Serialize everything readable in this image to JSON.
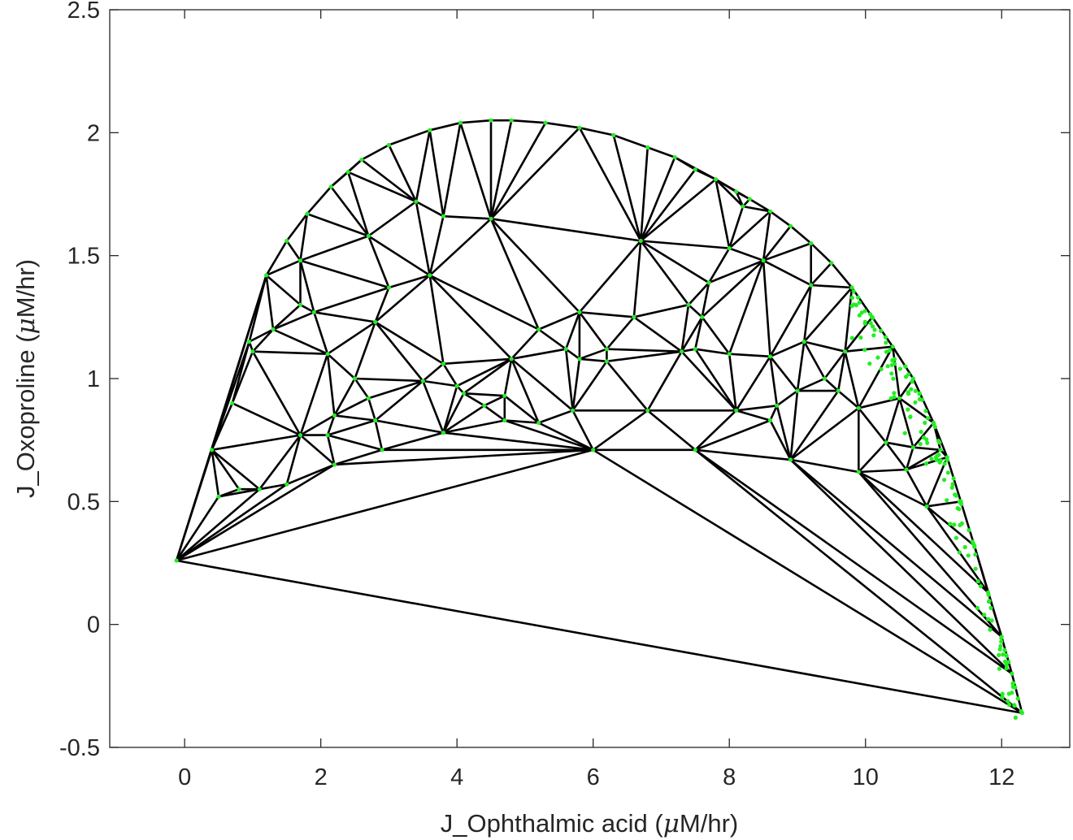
{
  "chart_data": {
    "type": "scatter",
    "title": "",
    "xlabel": {
      "prefix": "J_Ophthalmic acid (",
      "mu": "μ",
      "suffix": "M/hr)"
    },
    "ylabel": {
      "prefix": "J_Oxoproline (",
      "mu": "μ",
      "suffix": "M/hr)"
    },
    "xlim": [
      -1.1,
      13.0
    ],
    "ylim": [
      -0.5,
      2.5
    ],
    "xticks": [
      0,
      2,
      4,
      6,
      8,
      10,
      12
    ],
    "yticks": [
      -0.5,
      0,
      0.5,
      1,
      1.5,
      2,
      2.5
    ],
    "xtick_labels": [
      "0",
      "2",
      "4",
      "6",
      "8",
      "10",
      "12"
    ],
    "ytick_labels": [
      "-0.5",
      "0",
      "0.5",
      "1",
      "1.5",
      "2",
      "2.5"
    ],
    "grid": false,
    "legend": "none",
    "mesh_color": "#000000",
    "point_color": "#22ee22",
    "outer_points": [
      [
        -0.12,
        0.26
      ],
      [
        0.4,
        0.71
      ],
      [
        0.95,
        1.15
      ],
      [
        1.2,
        1.42
      ],
      [
        1.5,
        1.56
      ],
      [
        1.8,
        1.67
      ],
      [
        2.15,
        1.78
      ],
      [
        2.4,
        1.84
      ],
      [
        2.6,
        1.89
      ],
      [
        3.0,
        1.95
      ],
      [
        3.6,
        2.01
      ],
      [
        4.05,
        2.04
      ],
      [
        4.5,
        2.05
      ],
      [
        4.8,
        2.05
      ],
      [
        5.3,
        2.04
      ],
      [
        5.8,
        2.02
      ],
      [
        6.3,
        1.99
      ],
      [
        6.8,
        1.94
      ],
      [
        7.2,
        1.9
      ],
      [
        7.5,
        1.85
      ],
      [
        7.8,
        1.81
      ],
      [
        8.1,
        1.76
      ],
      [
        8.3,
        1.73
      ],
      [
        8.6,
        1.68
      ],
      [
        8.9,
        1.62
      ],
      [
        9.2,
        1.55
      ],
      [
        9.5,
        1.47
      ],
      [
        9.8,
        1.37
      ],
      [
        10.1,
        1.25
      ],
      [
        10.4,
        1.13
      ],
      [
        10.7,
        1.0
      ],
      [
        11.0,
        0.82
      ],
      [
        11.2,
        0.68
      ],
      [
        11.4,
        0.5
      ],
      [
        11.6,
        0.32
      ],
      [
        11.8,
        0.13
      ],
      [
        12.0,
        -0.05
      ],
      [
        12.15,
        -0.2
      ],
      [
        12.3,
        -0.36
      ]
    ],
    "base_points": [
      [
        2.9,
        0.71
      ],
      [
        6.0,
        0.71
      ],
      [
        7.5,
        0.71
      ],
      [
        8.9,
        0.67
      ],
      [
        9.9,
        0.62
      ],
      [
        10.9,
        0.48
      ],
      [
        11.6,
        0.32
      ],
      [
        12.3,
        -0.36
      ]
    ],
    "interior_points": [
      [
        0.5,
        0.52
      ],
      [
        0.8,
        0.55
      ],
      [
        1.1,
        0.55
      ],
      [
        1.5,
        0.57
      ],
      [
        2.2,
        0.65
      ],
      [
        0.7,
        0.9
      ],
      [
        1.0,
        1.11
      ],
      [
        1.3,
        1.2
      ],
      [
        1.7,
        0.77
      ],
      [
        2.1,
        0.77
      ],
      [
        2.2,
        0.85
      ],
      [
        2.7,
        0.92
      ],
      [
        2.8,
        0.83
      ],
      [
        1.7,
        1.3
      ],
      [
        1.7,
        1.48
      ],
      [
        2.1,
        1.1
      ],
      [
        1.9,
        1.27
      ],
      [
        2.8,
        1.23
      ],
      [
        2.7,
        1.58
      ],
      [
        2.5,
        1.0
      ],
      [
        3.0,
        1.37
      ],
      [
        3.4,
        1.72
      ],
      [
        3.5,
        0.99
      ],
      [
        3.8,
        0.78
      ],
      [
        3.8,
        1.06
      ],
      [
        4.0,
        0.97
      ],
      [
        3.8,
        1.66
      ],
      [
        3.6,
        1.42
      ],
      [
        4.4,
        0.89
      ],
      [
        4.1,
        0.94
      ],
      [
        4.5,
        1.65
      ],
      [
        4.7,
        0.93
      ],
      [
        4.7,
        0.83
      ],
      [
        4.8,
        1.08
      ],
      [
        5.2,
        0.82
      ],
      [
        5.2,
        1.2
      ],
      [
        5.6,
        1.12
      ],
      [
        5.8,
        1.27
      ],
      [
        5.8,
        1.08
      ],
      [
        5.7,
        0.87
      ],
      [
        6.2,
        1.12
      ],
      [
        6.2,
        1.07
      ],
      [
        6.6,
        1.25
      ],
      [
        6.8,
        0.87
      ],
      [
        6.7,
        1.56
      ],
      [
        7.3,
        1.11
      ],
      [
        7.5,
        1.12
      ],
      [
        7.4,
        1.3
      ],
      [
        7.7,
        1.39
      ],
      [
        7.6,
        1.25
      ],
      [
        8.0,
        1.1
      ],
      [
        8.1,
        0.87
      ],
      [
        8.2,
        1.7
      ],
      [
        8.0,
        1.53
      ],
      [
        8.6,
        1.09
      ],
      [
        8.5,
        1.48
      ],
      [
        8.7,
        0.89
      ],
      [
        8.6,
        0.83
      ],
      [
        9.0,
        0.95
      ],
      [
        9.1,
        1.15
      ],
      [
        9.2,
        1.38
      ],
      [
        9.4,
        1.0
      ],
      [
        9.6,
        0.95
      ],
      [
        9.7,
        1.11
      ],
      [
        9.9,
        0.88
      ],
      [
        10.3,
        0.74
      ],
      [
        10.5,
        0.92
      ],
      [
        10.7,
        0.72
      ],
      [
        10.6,
        0.63
      ],
      [
        11.1,
        0.71
      ]
    ],
    "dense_band_x_range": [
      9.8,
      12.3
    ]
  }
}
